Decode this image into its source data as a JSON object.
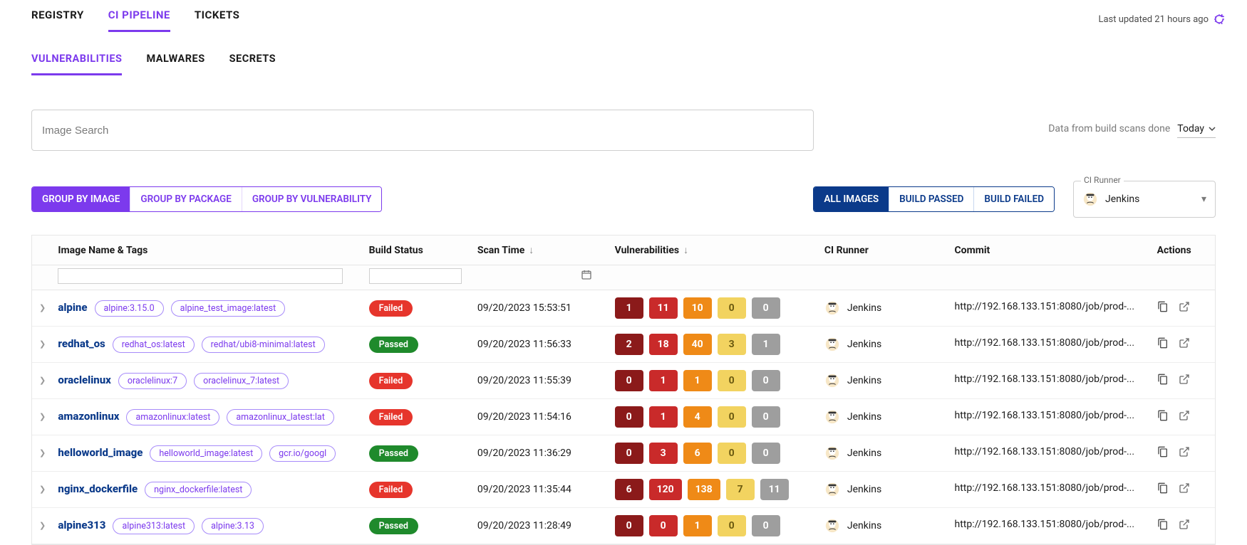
{
  "header": {
    "tabs": [
      "REGISTRY",
      "CI PIPELINE",
      "TICKETS"
    ],
    "active_tab": 1,
    "last_updated": "Last updated 21 hours ago"
  },
  "sub_tabs": {
    "items": [
      "VULNERABILITIES",
      "MALWARES",
      "SECRETS"
    ],
    "active": 0
  },
  "search": {
    "placeholder": "Image Search"
  },
  "date_scope": {
    "label": "Data from build scans done",
    "value": "Today"
  },
  "group_by": {
    "options": [
      "GROUP BY IMAGE",
      "GROUP BY PACKAGE",
      "GROUP BY VULNERABILITY"
    ],
    "active": 0
  },
  "image_filter": {
    "options": [
      "ALL IMAGES",
      "BUILD PASSED",
      "BUILD FAILED"
    ],
    "active": 0
  },
  "ci_runner_select": {
    "label": "CI Runner",
    "value": "Jenkins"
  },
  "colors": {
    "purple": "#7c3aed",
    "navy": "#0b3a8a",
    "status_failed": "#e6352c",
    "status_passed": "#1f8a2c",
    "sev": [
      "#8b1a1a",
      "#c92a2a",
      "#ef8a17",
      "#f2d360",
      "#9e9e9e"
    ]
  },
  "columns": {
    "image": "Image Name & Tags",
    "build": "Build Status",
    "scan": "Scan Time",
    "vuln": "Vulnerabilities",
    "runner": "CI Runner",
    "commit": "Commit",
    "actions": "Actions"
  },
  "rows": [
    {
      "name": "alpine",
      "tags": [
        "alpine:3.15.0",
        "alpine_test_image:latest"
      ],
      "build": "Failed",
      "scan": "09/20/2023 15:53:51",
      "sev": [
        1,
        11,
        10,
        0,
        0
      ],
      "runner": "Jenkins",
      "commit": "http://192.168.133.151:8080/job/prod-..."
    },
    {
      "name": "redhat_os",
      "tags": [
        "redhat_os:latest",
        "redhat/ubi8-minimal:latest"
      ],
      "build": "Passed",
      "scan": "09/20/2023 11:56:33",
      "sev": [
        2,
        18,
        40,
        3,
        1
      ],
      "runner": "Jenkins",
      "commit": "http://192.168.133.151:8080/job/prod-..."
    },
    {
      "name": "oraclelinux",
      "tags": [
        "oraclelinux:7",
        "oraclelinux_7:latest"
      ],
      "build": "Failed",
      "scan": "09/20/2023 11:55:39",
      "sev": [
        0,
        1,
        1,
        0,
        0
      ],
      "runner": "Jenkins",
      "commit": "http://192.168.133.151:8080/job/prod-..."
    },
    {
      "name": "amazonlinux",
      "tags": [
        "amazonlinux:latest",
        "amazonlinux_latest:lat"
      ],
      "build": "Failed",
      "scan": "09/20/2023 11:54:16",
      "sev": [
        0,
        1,
        4,
        0,
        0
      ],
      "runner": "Jenkins",
      "commit": "http://192.168.133.151:8080/job/prod-..."
    },
    {
      "name": "helloworld_image",
      "tags": [
        "helloworld_image:latest",
        "gcr.io/googl"
      ],
      "build": "Passed",
      "scan": "09/20/2023 11:36:29",
      "sev": [
        0,
        3,
        6,
        0,
        0
      ],
      "runner": "Jenkins",
      "commit": "http://192.168.133.151:8080/job/prod-..."
    },
    {
      "name": "nginx_dockerfile",
      "tags": [
        "nginx_dockerfile:latest"
      ],
      "build": "Failed",
      "scan": "09/20/2023 11:35:44",
      "sev": [
        6,
        120,
        138,
        7,
        11
      ],
      "runner": "Jenkins",
      "commit": "http://192.168.133.151:8080/job/prod-..."
    },
    {
      "name": "alpine313",
      "tags": [
        "alpine313:latest",
        "alpine:3.13"
      ],
      "build": "Passed",
      "scan": "09/20/2023 11:28:49",
      "sev": [
        0,
        0,
        1,
        0,
        0
      ],
      "runner": "Jenkins",
      "commit": "http://192.168.133.151:8080/job/prod-..."
    }
  ]
}
